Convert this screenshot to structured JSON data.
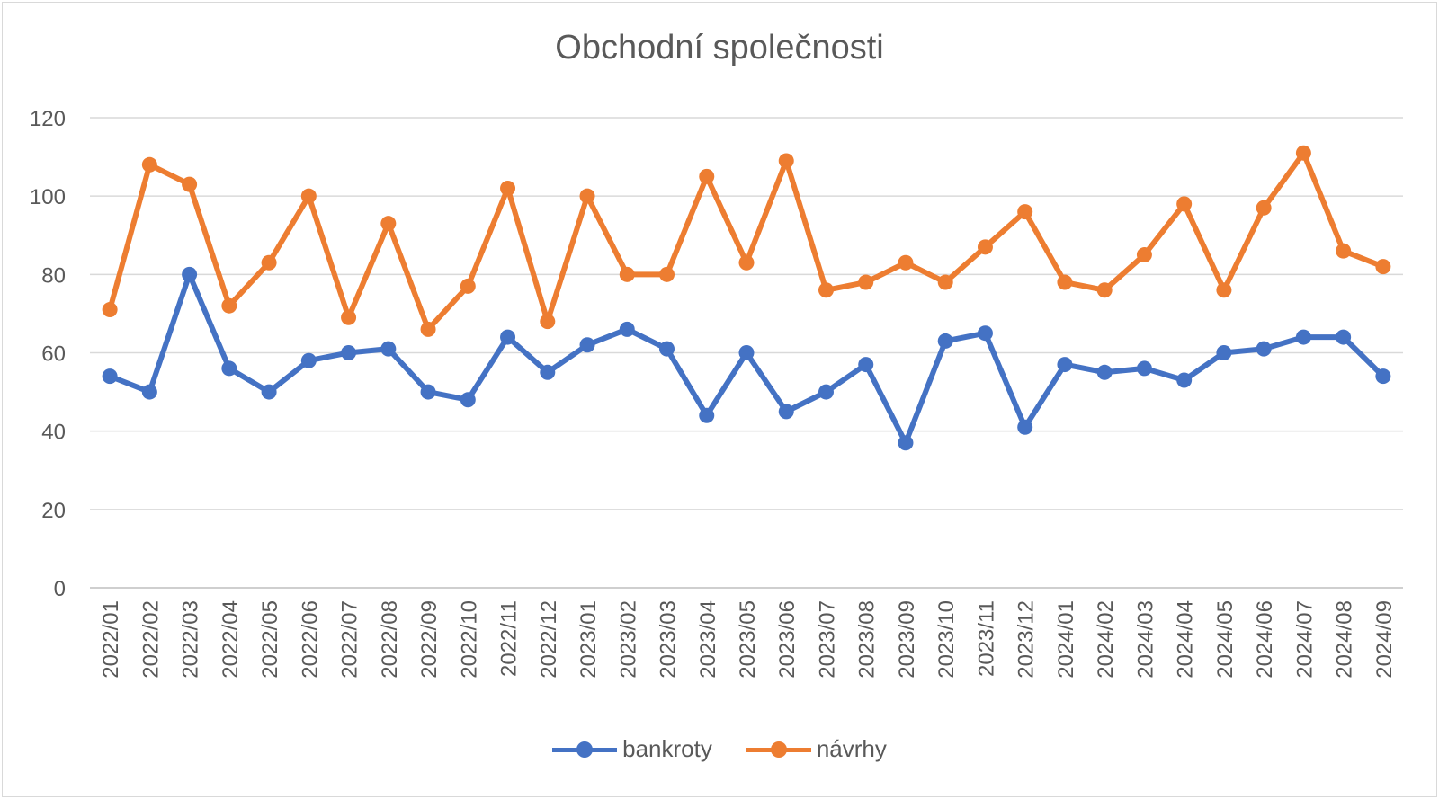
{
  "chart_data": {
    "type": "line",
    "title": "Obchodní společnosti",
    "xlabel": "",
    "ylabel": "",
    "ylim": [
      0,
      120
    ],
    "yticks": [
      0,
      20,
      40,
      60,
      80,
      100,
      120
    ],
    "grid": true,
    "legend_position": "bottom",
    "categories": [
      "2022/01",
      "2022/02",
      "2022/03",
      "2022/04",
      "2022/05",
      "2022/06",
      "2022/07",
      "2022/08",
      "2022/09",
      "2022/10",
      "2022/11",
      "2022/12",
      "2023/01",
      "2023/02",
      "2023/03",
      "2023/04",
      "2023/05",
      "2023/06",
      "2023/07",
      "2023/08",
      "2023/09",
      "2023/10",
      "2023/11",
      "2023/12",
      "2024/01",
      "2024/02",
      "2024/03",
      "2024/04",
      "2024/05",
      "2024/06",
      "2024/07",
      "2024/08",
      "2024/09"
    ],
    "series": [
      {
        "name": "bankroty",
        "color": "#4472c4",
        "values": [
          54,
          50,
          80,
          56,
          50,
          58,
          60,
          61,
          50,
          48,
          64,
          55,
          62,
          66,
          61,
          44,
          60,
          45,
          50,
          57,
          37,
          63,
          65,
          41,
          57,
          55,
          56,
          53,
          60,
          61,
          64,
          64,
          54
        ]
      },
      {
        "name": "návrhy",
        "color": "#ed7d31",
        "values": [
          71,
          108,
          103,
          72,
          83,
          100,
          69,
          93,
          66,
          77,
          102,
          68,
          100,
          80,
          80,
          105,
          83,
          109,
          76,
          78,
          83,
          78,
          87,
          96,
          78,
          76,
          85,
          98,
          76,
          97,
          111,
          86,
          82
        ]
      }
    ]
  }
}
